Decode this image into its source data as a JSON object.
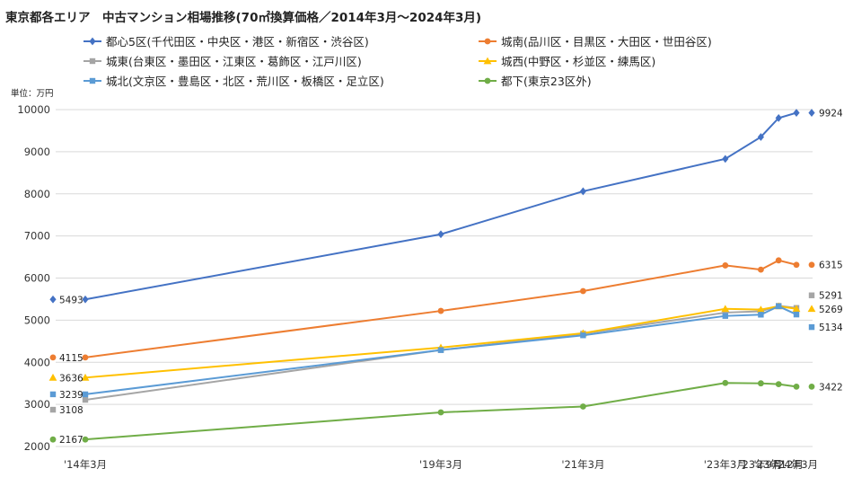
{
  "chart_data": {
    "type": "line",
    "title": "東京都各エリア　中古マンション相場推移(70㎡換算価格／2014年3月～2024年3月)",
    "unit_label": "単位：万円",
    "categories": [
      "'14年3月",
      "'19年3月",
      "'21年3月",
      "'23年3月",
      "'23年9月",
      "'23年12月",
      "'24年3月"
    ],
    "x_months": [
      0,
      60,
      84,
      108,
      114,
      117,
      120
    ],
    "ylim": [
      2000,
      10000
    ],
    "yticks": [
      2000,
      3000,
      4000,
      5000,
      6000,
      7000,
      8000,
      9000,
      10000
    ],
    "grid": true,
    "legend_position": "top",
    "series": [
      {
        "name": "都心5区(千代田区・中央区・港区・新宿区・渋谷区)",
        "color": "#4472C4",
        "marker": "diamond",
        "values": [
          5493,
          7040,
          8060,
          8830,
          9350,
          9800,
          9924
        ],
        "label_start": "5493",
        "label_end": "9924"
      },
      {
        "name": "城南(品川区・目黒区・大田区・世田谷区)",
        "color": "#ED7D31",
        "marker": "circle",
        "values": [
          4115,
          5220,
          5690,
          6300,
          6200,
          6420,
          6315
        ],
        "label_start": "4115",
        "label_end": "6315"
      },
      {
        "name": "城東(台東区・墨田区・江東区・葛飾区・江戸川区)",
        "color": "#A5A5A5",
        "marker": "square",
        "values": [
          3108,
          4290,
          4680,
          5180,
          5210,
          5340,
          5291
        ],
        "label_start": "3108",
        "label_end": "5291"
      },
      {
        "name": "城西(中野区・杉並区・練馬区)",
        "color": "#FFC000",
        "marker": "triangle",
        "values": [
          3636,
          4350,
          4690,
          5270,
          5250,
          5330,
          5269
        ],
        "label_start": "3636",
        "label_end": "5269"
      },
      {
        "name": "城北(文京区・豊島区・北区・荒川区・板橋区・足立区)",
        "color": "#5B9BD5",
        "marker": "square",
        "values": [
          3239,
          4290,
          4640,
          5100,
          5130,
          5330,
          5134
        ],
        "label_start": "3239",
        "label_end": "5134"
      },
      {
        "name": "都下(東京23区外)",
        "color": "#70AD47",
        "marker": "circle",
        "values": [
          2167,
          2810,
          2950,
          3510,
          3500,
          3480,
          3422
        ],
        "label_start": "2167",
        "label_end": "3422"
      }
    ]
  }
}
